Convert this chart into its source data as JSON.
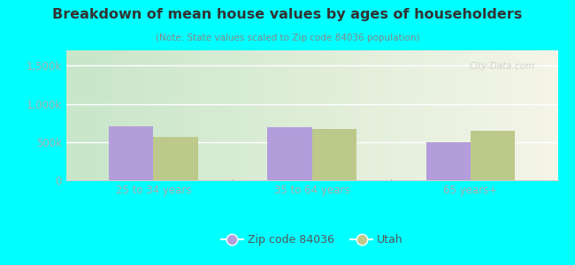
{
  "title": "Breakdown of mean house values by ages of householders",
  "subtitle": "(Note: State values scaled to Zip code 84036 population)",
  "categories": [
    "25 to 34 years",
    "35 to 64 years",
    "65 years+"
  ],
  "zip_values": [
    700000,
    695000,
    495000
  ],
  "utah_values": [
    570000,
    672000,
    648000
  ],
  "ylim": [
    0,
    1700000
  ],
  "yticks": [
    0,
    500000,
    1000000,
    1500000
  ],
  "ytick_labels": [
    "0",
    "500k",
    "1,000k",
    "1,500k"
  ],
  "zip_color": "#b39ddb",
  "utah_color": "#bdc98a",
  "background_color": "#00ffff",
  "grad_color_left": "#c8e6c9",
  "grad_color_right": "#f5f5e8",
  "legend_zip": "Zip code 84036",
  "legend_utah": "Utah",
  "bar_width": 0.28,
  "grid_color": "#ffffff",
  "tick_color": "#aaaaaa",
  "label_color": "#aaaaaa",
  "title_color": "#333333",
  "watermark": "City-Data.com"
}
